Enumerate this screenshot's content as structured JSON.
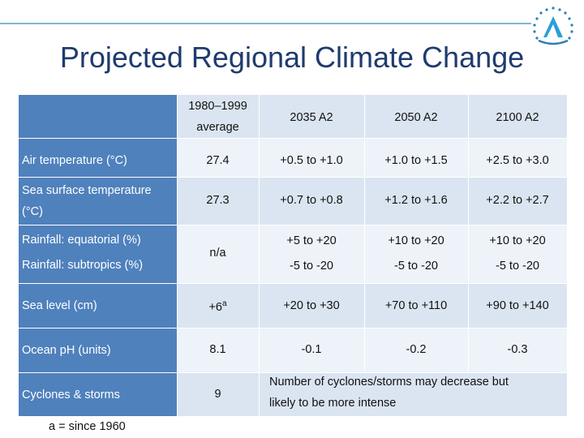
{
  "title": "Projected Regional Climate Change",
  "logo": "pacific-climate-logo",
  "table": {
    "headers": {
      "baseline": "1980–1999",
      "baseline_sub": "average",
      "col1": "2035 A2",
      "col2": "2050 A2",
      "col3": "2100 A2"
    },
    "rows": {
      "air": {
        "label": "Air temperature (°C)",
        "base": "27.4",
        "c1": "+0.5 to +1.0",
        "c2": "+1.0 to +1.5",
        "c3": "+2.5 to +3.0"
      },
      "sst": {
        "label1": "Sea surface temperature",
        "label2": "(°C)",
        "base": "27.3",
        "c1": "+0.7 to +0.8",
        "c2": "+1.2 to +1.6",
        "c3": "+2.2 to +2.7"
      },
      "rain": {
        "label1": "Rainfall: equatorial (%)",
        "label2": "Rainfall: subtropics (%)",
        "base": "n/a",
        "c1a": "+5 to +20",
        "c2a": "+10 to +20",
        "c3a": "+10 to +20",
        "c1b": "-5 to -20",
        "c2b": "-5 to -20",
        "c3b": "-5 to -20"
      },
      "sea": {
        "label": "Sea level (cm)",
        "base": "+6",
        "base_sup": "a",
        "c1": "+20 to +30",
        "c2": "+70 to +110",
        "c3": "+90 to +140"
      },
      "ph": {
        "label": "Ocean pH (units)",
        "base": "8.1",
        "c1": "-0.1",
        "c2": "-0.2",
        "c3": "-0.3"
      },
      "cyc": {
        "label": "Cyclones & storms",
        "base": "9",
        "note1": "Number of cyclones/storms may decrease but",
        "note2": "likely to be more intense"
      }
    }
  },
  "footnote": "a = since 1960",
  "colors": {
    "label_bg": "#4f81bd",
    "row_light": "#dbe5f1",
    "row_alt": "#eef3fa",
    "title": "#1f3b6e"
  }
}
